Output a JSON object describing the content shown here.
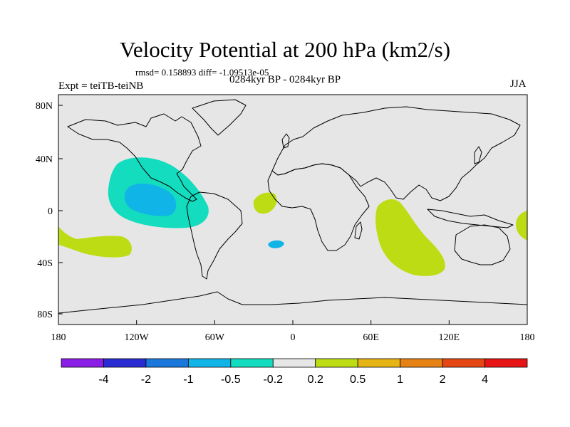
{
  "title": "Velocity Potential at 200 hPa (km2/s)",
  "stats": "rmsd= 0.158893  diff= -1.09513e-05",
  "experiment": "Expt = teiTB-teiNB",
  "period": "0284kyr BP - 0284kyr BP",
  "season": "JJA",
  "map": {
    "background_color": "#e6e6e6",
    "x_ticks": [
      "180",
      "120W",
      "60W",
      "0",
      "60E",
      "120E",
      "180"
    ],
    "y_ticks": [
      "80N",
      "40N",
      "0",
      "40S",
      "80S"
    ]
  },
  "colorbar": {
    "colors": [
      "#8b1ee6",
      "#2b2bd4",
      "#1a78dc",
      "#10b4e6",
      "#14dcbe",
      "#e6e6e6",
      "#bedc14",
      "#e6b414",
      "#e68214",
      "#e64614",
      "#e61414"
    ],
    "labels": [
      "-4",
      "-2",
      "-1",
      "-0.5",
      "-0.2",
      "0.2",
      "0.5",
      "1",
      "2",
      "4"
    ]
  },
  "anomalies": [
    {
      "name": "east-pacific-negative",
      "color": "#14dcbe",
      "level": "-0.2 to -0.5"
    },
    {
      "name": "east-pacific-core",
      "color": "#10b4e6",
      "level": "-0.5 to -1"
    },
    {
      "name": "equatorial-atlantic-positive",
      "color": "#bedc14",
      "level": "0.2 to 0.5"
    },
    {
      "name": "south-atlantic-negative",
      "color": "#10b4e6",
      "level": "-0.5 to -1"
    },
    {
      "name": "indian-ocean-positive",
      "color": "#bedc14",
      "level": "0.2 to 0.5"
    },
    {
      "name": "south-pacific-positive",
      "color": "#bedc14",
      "level": "0.2 to 0.5"
    },
    {
      "name": "west-pacific-positive",
      "color": "#bedc14",
      "level": "0.2 to 0.5"
    }
  ]
}
